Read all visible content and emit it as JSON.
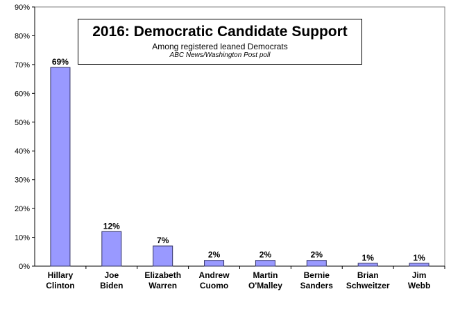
{
  "chart_data": {
    "type": "bar",
    "title": "2016: Democratic Candidate Support",
    "subtitle": "Among registered leaned Democrats",
    "source": "ABC News/Washington  Post poll",
    "categories": [
      [
        "Hillary",
        "Clinton"
      ],
      [
        "Joe",
        "Biden"
      ],
      [
        "Elizabeth",
        "Warren"
      ],
      [
        "Andrew",
        "Cuomo"
      ],
      [
        "Martin",
        "O'Malley"
      ],
      [
        "Bernie",
        "Sanders"
      ],
      [
        "Brian",
        "Schweitzer"
      ],
      [
        "Jim",
        "Webb"
      ]
    ],
    "values": [
      69,
      12,
      7,
      2,
      2,
      2,
      1,
      1
    ],
    "data_labels": [
      "69%",
      "12%",
      "7%",
      "2%",
      "2%",
      "2%",
      "1%",
      "1%"
    ],
    "ylim": [
      0,
      90
    ],
    "yticks": [
      0,
      10,
      20,
      30,
      40,
      50,
      60,
      70,
      80,
      90
    ],
    "ytick_labels": [
      "0%",
      "10%",
      "20%",
      "30%",
      "40%",
      "50%",
      "60%",
      "70%",
      "80%",
      "90%"
    ],
    "xlabel": "",
    "ylabel": "",
    "grid": false,
    "bar_color": "#9999ff",
    "bar_edge_color": "#333366"
  }
}
